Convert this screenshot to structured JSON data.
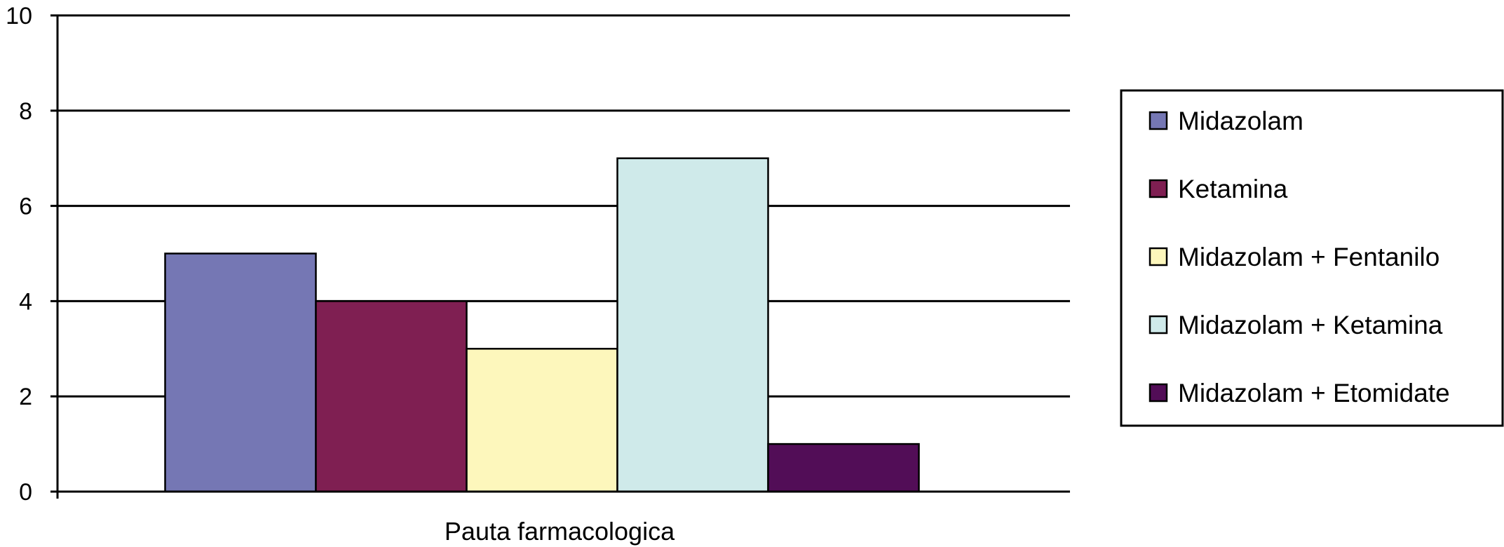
{
  "chart_data": {
    "type": "bar",
    "categories": [
      "Pauta farmacologica"
    ],
    "series": [
      {
        "name": "Midazolam",
        "values": [
          5
        ],
        "color": "#7577b4"
      },
      {
        "name": "Ketamina",
        "values": [
          4
        ],
        "color": "#7f1f52"
      },
      {
        "name": "Midazolam + Fentanilo",
        "values": [
          3
        ],
        "color": "#fdf7bc"
      },
      {
        "name": "Midazolam + Ketamina",
        "values": [
          7
        ],
        "color": "#cfeaea"
      },
      {
        "name": "Midazolam + Etomidate",
        "values": [
          1
        ],
        "color": "#520d57"
      }
    ],
    "ylim": [
      0,
      10
    ],
    "yticks": [
      "0",
      "2",
      "4",
      "6",
      "8",
      "10"
    ],
    "ytick_values": [
      0,
      2,
      4,
      6,
      8,
      10
    ],
    "grid": true,
    "legend_position": "right",
    "title": "",
    "xlabel": "",
    "ylabel": ""
  }
}
